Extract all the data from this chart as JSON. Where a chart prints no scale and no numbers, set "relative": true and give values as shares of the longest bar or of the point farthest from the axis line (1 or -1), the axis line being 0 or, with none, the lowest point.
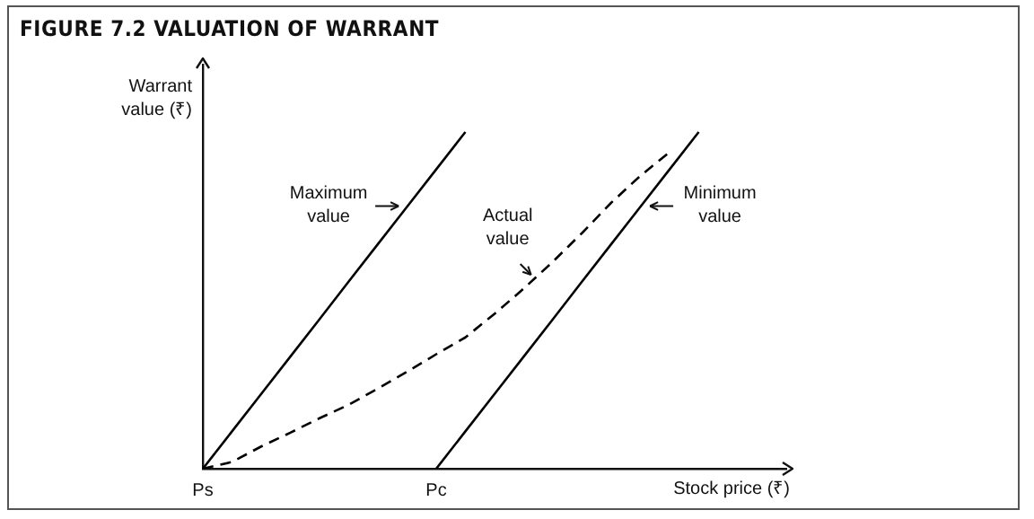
{
  "chart_data": {
    "type": "line",
    "title": "FIGURE 7.2  VALUATION OF WARRANT",
    "xlabel": "Stock price (₹)",
    "ylabel": "Warrant value (₹)",
    "relative": true,
    "categories": [
      "Ps",
      null,
      null,
      null,
      null,
      null,
      null,
      null,
      "Pc",
      null,
      null,
      null,
      null,
      null,
      null,
      null,
      null,
      null,
      null,
      null,
      null
    ],
    "grid": false,
    "legend": false,
    "marker": "none",
    "series": [
      {
        "name": "Maximum value",
        "color": "#000000",
        "line_style": "solid",
        "values": [
          0,
          0.111,
          0.222,
          0.333,
          0.444,
          0.556,
          0.667,
          0.778,
          0.889,
          1,
          null,
          null,
          null,
          null,
          null,
          null,
          null,
          null,
          null,
          null,
          null
        ]
      },
      {
        "name": "Actual value",
        "color": "#000000",
        "line_style": "dashed",
        "values": [
          0,
          0.02,
          0.066,
          0.107,
          0.15,
          0.19,
          0.238,
          0.288,
          0.34,
          0.39,
          0.46,
          0.535,
          0.615,
          0.7,
          0.79,
          0.87,
          0.94,
          null,
          null,
          null,
          null
        ]
      },
      {
        "name": "Minimum value",
        "color": "#000000",
        "line_style": "solid",
        "values": [
          null,
          null,
          null,
          null,
          null,
          null,
          null,
          null,
          0,
          0.111,
          0.222,
          0.333,
          0.444,
          0.556,
          0.667,
          0.778,
          0.889,
          1,
          null,
          null,
          null
        ]
      }
    ]
  }
}
